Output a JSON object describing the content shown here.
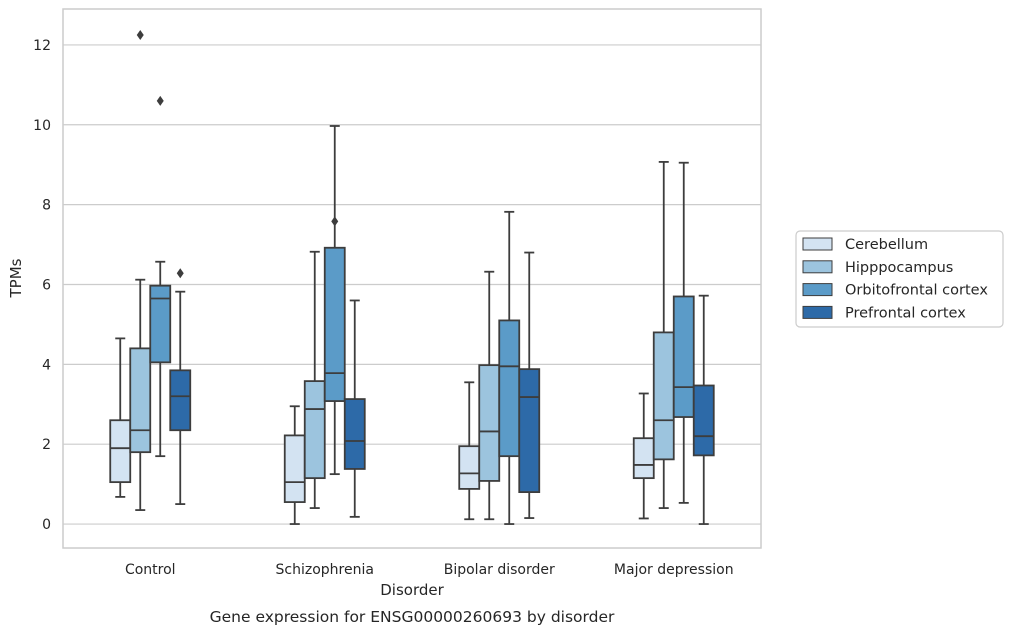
{
  "chart_data": {
    "type": "boxplot",
    "xlabel": "Disorder",
    "ylabel": "TPMs",
    "caption": "Gene expression for ENSG00000260693 by disorder",
    "ylim": [
      -0.6,
      12.9
    ],
    "yticks": [
      "0",
      "2",
      "4",
      "6",
      "8",
      "10",
      "12"
    ],
    "ytick_values": [
      0,
      2,
      4,
      6,
      8,
      10,
      12
    ],
    "grid": true,
    "legend_position": "right",
    "categories": [
      "Control",
      "Schizophrenia",
      "Bipolar disorder",
      "Major depression"
    ],
    "series": [
      {
        "name": "Cerebellum",
        "color": "#d3e3f2",
        "boxes": [
          {
            "whislo": 0.68,
            "q1": 1.05,
            "med": 1.9,
            "q3": 2.6,
            "whishi": 4.65,
            "fliers": []
          },
          {
            "whislo": 0.0,
            "q1": 0.55,
            "med": 1.05,
            "q3": 2.22,
            "whishi": 2.95,
            "fliers": []
          },
          {
            "whislo": 0.12,
            "q1": 0.88,
            "med": 1.27,
            "q3": 1.95,
            "whishi": 3.55,
            "fliers": []
          },
          {
            "whislo": 0.14,
            "q1": 1.15,
            "med": 1.48,
            "q3": 2.15,
            "whishi": 3.27,
            "fliers": []
          }
        ]
      },
      {
        "name": "Hipppocampus",
        "color": "#9cc4de",
        "boxes": [
          {
            "whislo": 0.35,
            "q1": 1.8,
            "med": 2.35,
            "q3": 4.4,
            "whishi": 6.12,
            "fliers": [
              12.25
            ]
          },
          {
            "whislo": 0.4,
            "q1": 1.15,
            "med": 2.88,
            "q3": 3.58,
            "whishi": 6.82,
            "fliers": []
          },
          {
            "whislo": 0.12,
            "q1": 1.08,
            "med": 2.32,
            "q3": 3.98,
            "whishi": 6.32,
            "fliers": []
          },
          {
            "whislo": 0.4,
            "q1": 1.62,
            "med": 2.6,
            "q3": 4.8,
            "whishi": 9.07,
            "fliers": []
          }
        ]
      },
      {
        "name": "Orbitofrontal cortex",
        "color": "#5b9bc8",
        "boxes": [
          {
            "whislo": 1.7,
            "q1": 4.05,
            "med": 5.65,
            "q3": 5.97,
            "whishi": 6.57,
            "fliers": [
              10.6
            ]
          },
          {
            "whislo": 1.25,
            "q1": 3.08,
            "med": 3.78,
            "q3": 6.92,
            "whishi": 9.97,
            "fliers": [
              7.58
            ]
          },
          {
            "whislo": 0.0,
            "q1": 1.7,
            "med": 3.95,
            "q3": 5.1,
            "whishi": 7.82,
            "fliers": []
          },
          {
            "whislo": 0.53,
            "q1": 2.68,
            "med": 3.43,
            "q3": 5.7,
            "whishi": 9.05,
            "fliers": []
          }
        ]
      },
      {
        "name": "Prefrontal cortex",
        "color": "#2d6aa8",
        "boxes": [
          {
            "whislo": 0.5,
            "q1": 2.35,
            "med": 3.2,
            "q3": 3.85,
            "whishi": 5.82,
            "fliers": [
              6.28
            ]
          },
          {
            "whislo": 0.18,
            "q1": 1.38,
            "med": 2.08,
            "q3": 3.13,
            "whishi": 5.6,
            "fliers": []
          },
          {
            "whislo": 0.15,
            "q1": 0.8,
            "med": 3.18,
            "q3": 3.88,
            "whishi": 6.8,
            "fliers": []
          },
          {
            "whislo": 0.0,
            "q1": 1.72,
            "med": 2.2,
            "q3": 3.47,
            "whishi": 5.72,
            "fliers": []
          }
        ]
      }
    ]
  }
}
